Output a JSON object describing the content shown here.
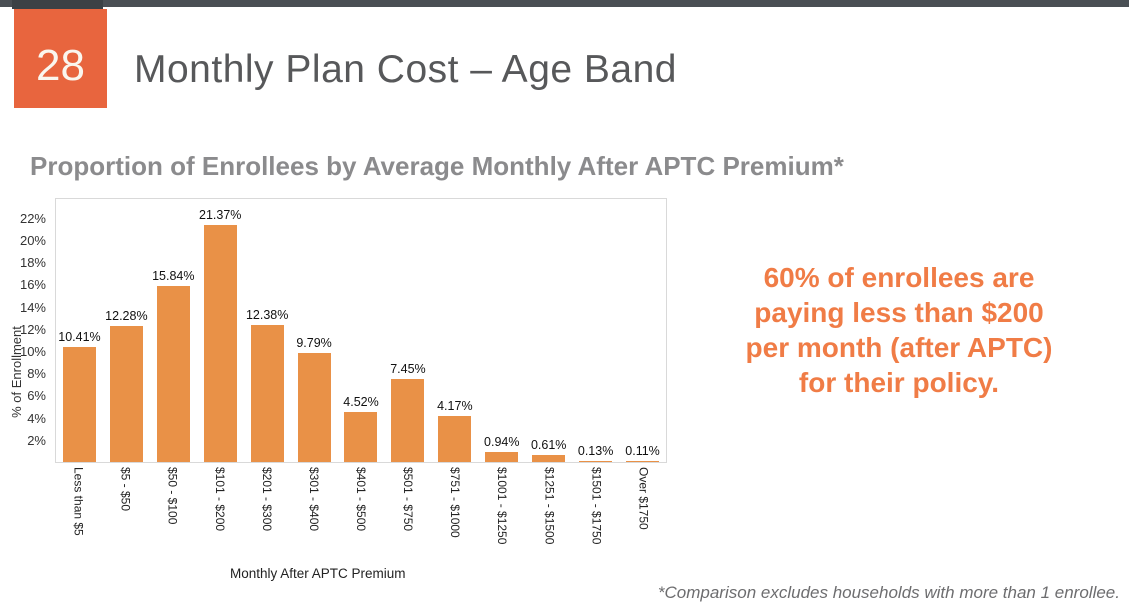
{
  "slide": {
    "number": "28",
    "title": "Monthly Plan Cost – Age Band"
  },
  "callout": {
    "lines": [
      "60% of enrollees are",
      "paying less than $200",
      "per month (after APTC)",
      "for their policy."
    ]
  },
  "footnote": "*Comparison excludes households with more than 1 enrollee.",
  "colors": {
    "topbar": "#4a4f54",
    "topbar_tab": "#3c4145",
    "slide_number_box": "#e8653e",
    "page_title": "#57585a",
    "chart_title": "#8b8b8d",
    "bar": "#e99147",
    "callout_text": "#f07c46",
    "footnote_text": "#6d6d6f",
    "plot_border": "#d9d9d9"
  },
  "chart_data": {
    "type": "bar",
    "title": "Proportion of Enrollees by Average Monthly After APTC Premium*",
    "xlabel": "Monthly After APTC Premium",
    "ylabel": "% of Enrollment",
    "categories": [
      "Less than $5",
      "$5 - $50",
      "$50 - $100",
      "$101 - $200",
      "$201 - $300",
      "$301 - $400",
      "$401 - $500",
      "$501 - $750",
      "$751 - $1000",
      "$1001 - $1250",
      "$1251 - $1500",
      "$1501 - $1750",
      "Over $1750"
    ],
    "values": [
      10.41,
      12.28,
      15.84,
      21.37,
      12.38,
      9.79,
      4.52,
      7.45,
      4.17,
      0.94,
      0.61,
      0.13,
      0.11
    ],
    "labels": [
      "10.41%",
      "12.28%",
      "15.84%",
      "21.37%",
      "12.38%",
      "9.79%",
      "4.52%",
      "7.45%",
      "4.17%",
      "0.94%",
      "0.61%",
      "0.13%",
      "0.11%"
    ],
    "yticks": [
      2,
      4,
      6,
      8,
      10,
      12,
      14,
      16,
      18,
      20,
      22
    ],
    "ytick_suffix": "%",
    "ylim": [
      0,
      23.7
    ],
    "grid": false,
    "legend": null,
    "bar_color": "#e99147"
  }
}
